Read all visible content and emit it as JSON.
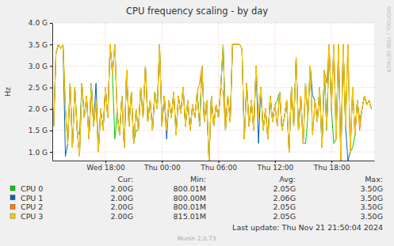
{
  "chart_data": {
    "type": "line",
    "title": "CPU frequency scaling - by day",
    "ylabel": "Hz",
    "grid": true,
    "xlim": [
      12.36,
      46.54
    ],
    "xticks": [
      {
        "value": 18,
        "label": "Wed 18:00"
      },
      {
        "value": 24,
        "label": "Thu 00:00"
      },
      {
        "value": 30,
        "label": "Thu 06:00"
      },
      {
        "value": 36,
        "label": "Thu 12:00"
      },
      {
        "value": 42,
        "label": "Thu 18:00"
      }
    ],
    "ylim": [
      800000000.0,
      4000000000.0
    ],
    "yticks": [
      {
        "value": 1000000000.0,
        "label": "1.0 G"
      },
      {
        "value": 1500000000.0,
        "label": "1.5 G"
      },
      {
        "value": 2000000000.0,
        "label": "2.0 G"
      },
      {
        "value": 2500000000.0,
        "label": "2.5 G"
      },
      {
        "value": 3000000000.0,
        "label": "3.0 G"
      },
      {
        "value": 3500000000.0,
        "label": "3.5 G"
      },
      {
        "value": 4000000000.0,
        "label": "4.0 G"
      }
    ],
    "x": [
      12.5,
      12.75,
      13,
      13.25,
      13.5,
      13.75,
      14,
      14.25,
      14.5,
      14.75,
      15,
      15.25,
      15.5,
      15.75,
      16,
      16.25,
      16.5,
      16.75,
      17,
      17.25,
      17.5,
      17.75,
      18,
      18.25,
      18.5,
      18.75,
      19,
      19.25,
      19.5,
      19.75,
      20,
      20.25,
      20.5,
      20.75,
      21,
      21.25,
      21.5,
      21.75,
      22,
      22.25,
      22.5,
      22.75,
      23,
      23.25,
      23.5,
      23.75,
      24,
      24.25,
      24.5,
      24.75,
      25,
      25.25,
      25.5,
      25.75,
      26,
      26.25,
      26.5,
      26.75,
      27,
      27.25,
      27.5,
      27.75,
      28,
      28.25,
      28.5,
      28.75,
      29,
      29.25,
      29.5,
      29.75,
      30,
      30.25,
      30.5,
      30.75,
      31,
      31.25,
      31.5,
      31.75,
      32,
      32.25,
      32.5,
      32.75,
      33,
      33.25,
      33.5,
      33.75,
      34,
      34.25,
      34.5,
      34.75,
      35,
      35.25,
      35.5,
      35.75,
      36,
      36.25,
      36.5,
      36.75,
      37,
      37.25,
      37.5,
      37.75,
      38,
      38.25,
      38.5,
      38.75,
      39,
      39.25,
      39.5,
      39.75,
      40,
      40.25,
      40.5,
      40.75,
      41,
      41.25,
      41.5,
      41.75,
      42,
      42.25,
      42.5,
      42.75,
      43,
      43.25,
      43.5,
      43.75,
      44,
      44.25,
      44.5,
      44.75,
      45,
      45.25,
      45.5,
      45.75,
      46,
      46.25
    ],
    "series": [
      {
        "name": "CPU 0",
        "color": "#00cc00",
        "values": [
          1600000000.0,
          3300000000.0,
          3500000000.0,
          3400000000.0,
          3500000000.0,
          2000000000.0,
          1200000000.0,
          2600000000.0,
          1100000000.0,
          2500000000.0,
          1500000000.0,
          1400000000.0,
          2600000000.0,
          1800000000.0,
          2300000000.0,
          1300000000.0,
          2600000000.0,
          1600000000.0,
          2200000000.0,
          1000000000.0,
          2000000000.0,
          1500000000.0,
          2500000000.0,
          1800000000.0,
          3500000000.0,
          2800000000.0,
          1300000000.0,
          1900000000.0,
          1400000000.0,
          2300000000.0,
          1100000000.0,
          2900000000.0,
          1600000000.0,
          2400000000.0,
          1200000000.0,
          1500000000.0,
          1500000000.0,
          2500000000.0,
          1800000000.0,
          3000000000.0,
          1700000000.0,
          2200000000.0,
          1500000000.0,
          2400000000.0,
          2000000000.0,
          3500000000.0,
          1600000000.0,
          2300000000.0,
          1500000000.0,
          2200000000.0,
          1800000000.0,
          2400000000.0,
          1400000000.0,
          2300000000.0,
          1900000000.0,
          2500000000.0,
          1600000000.0,
          2200000000.0,
          1500000000.0,
          2100000000.0,
          1800000000.0,
          2400000000.0,
          1600000000.0,
          3000000000.0,
          1700000000.0,
          2200000000.0,
          800000000.0,
          2300000000.0,
          1600000000.0,
          2100000000.0,
          1800000000.0,
          2500000000.0,
          3500000000.0,
          1500000000.0,
          2300000000.0,
          1700000000.0,
          3500000000.0,
          3500000000.0,
          3500000000.0,
          3500000000.0,
          3400000000.0,
          1300000000.0,
          2600000000.0,
          1600000000.0,
          2200000000.0,
          1500000000.0,
          3000000000.0,
          1800000000.0,
          2500000000.0,
          1500000000.0,
          2000000000.0,
          1300000000.0,
          2300000000.0,
          1700000000.0,
          2100000000.0,
          2200000000.0,
          2400000000.0,
          1500000000.0,
          1800000000.0,
          2200000000.0,
          1000000000.0,
          2500000000.0,
          1600000000.0,
          3200000000.0,
          1500000000.0,
          2300000000.0,
          1200000000.0,
          1200000000.0,
          1800000000.0,
          3000000000.0,
          1400000000.0,
          2200000000.0,
          1700000000.0,
          2500000000.0,
          1100000000.0,
          2900000000.0,
          1500000000.0,
          3500000000.0,
          2000000000.0,
          1200000000.0,
          1300000000.0,
          3500000000.0,
          800000000.0,
          3500000000.0,
          1600000000.0,
          3500000000.0,
          1000000000.0,
          1100000000.0,
          1400000000.0,
          2200000000.0,
          1700000000.0,
          2000000000.0,
          2300000000.0,
          2100000000.0,
          2200000000.0,
          2000000000.0
        ]
      },
      {
        "name": "CPU 1",
        "color": "#0066b3",
        "values": [
          1600000000.0,
          3300000000.0,
          3500000000.0,
          3400000000.0,
          3500000000.0,
          900000000.0,
          1200000000.0,
          2600000000.0,
          1100000000.0,
          2500000000.0,
          1500000000.0,
          900000000.0,
          2600000000.0,
          1800000000.0,
          2300000000.0,
          1300000000.0,
          2600000000.0,
          1600000000.0,
          2600000000.0,
          1000000000.0,
          2000000000.0,
          1500000000.0,
          2500000000.0,
          1800000000.0,
          3500000000.0,
          2800000000.0,
          3500000000.0,
          1900000000.0,
          1400000000.0,
          2300000000.0,
          1100000000.0,
          2900000000.0,
          1600000000.0,
          2400000000.0,
          1200000000.0,
          2000000000.0,
          1500000000.0,
          2500000000.0,
          1800000000.0,
          3000000000.0,
          1700000000.0,
          2200000000.0,
          1500000000.0,
          2400000000.0,
          2000000000.0,
          3500000000.0,
          1600000000.0,
          2300000000.0,
          1300000000.0,
          2200000000.0,
          1800000000.0,
          2400000000.0,
          1400000000.0,
          2300000000.0,
          1900000000.0,
          2500000000.0,
          1600000000.0,
          2200000000.0,
          1500000000.0,
          2100000000.0,
          1800000000.0,
          2400000000.0,
          1600000000.0,
          3000000000.0,
          1700000000.0,
          2200000000.0,
          800000000.0,
          2300000000.0,
          1600000000.0,
          2100000000.0,
          1800000000.0,
          2500000000.0,
          3500000000.0,
          1500000000.0,
          2300000000.0,
          1700000000.0,
          3500000000.0,
          3500000000.0,
          3500000000.0,
          3500000000.0,
          3400000000.0,
          1300000000.0,
          2600000000.0,
          1600000000.0,
          2200000000.0,
          1500000000.0,
          3000000000.0,
          1200000000.0,
          2500000000.0,
          1500000000.0,
          2000000000.0,
          1300000000.0,
          2300000000.0,
          1700000000.0,
          2100000000.0,
          1600000000.0,
          2400000000.0,
          1500000000.0,
          1800000000.0,
          2200000000.0,
          1000000000.0,
          2500000000.0,
          1600000000.0,
          3200000000.0,
          1500000000.0,
          2300000000.0,
          1200000000.0,
          2600000000.0,
          1800000000.0,
          3000000000.0,
          2300000000.0,
          2200000000.0,
          1700000000.0,
          2500000000.0,
          1100000000.0,
          2900000000.0,
          1500000000.0,
          3500000000.0,
          2000000000.0,
          3500000000.0,
          1300000000.0,
          3500000000.0,
          800000000.0,
          3500000000.0,
          1600000000.0,
          800000000.0,
          1000000000.0,
          2500000000.0,
          1400000000.0,
          2200000000.0,
          1700000000.0,
          2000000000.0,
          2300000000.0,
          2100000000.0,
          2200000000.0,
          2000000000.0
        ]
      },
      {
        "name": "CPU 2",
        "color": "#ff8000",
        "values": [
          1600000000.0,
          3300000000.0,
          3500000000.0,
          3400000000.0,
          3500000000.0,
          2000000000.0,
          1200000000.0,
          2600000000.0,
          1100000000.0,
          2500000000.0,
          1500000000.0,
          900000000.0,
          2600000000.0,
          1800000000.0,
          2300000000.0,
          1300000000.0,
          2400000000.0,
          1600000000.0,
          2200000000.0,
          1000000000.0,
          2000000000.0,
          1500000000.0,
          2500000000.0,
          1800000000.0,
          3500000000.0,
          2800000000.0,
          3500000000.0,
          1900000000.0,
          1400000000.0,
          2300000000.0,
          1100000000.0,
          2900000000.0,
          1600000000.0,
          2400000000.0,
          1200000000.0,
          2000000000.0,
          1500000000.0,
          2500000000.0,
          1800000000.0,
          3000000000.0,
          1700000000.0,
          2200000000.0,
          1500000000.0,
          2400000000.0,
          2000000000.0,
          3500000000.0,
          1600000000.0,
          2300000000.0,
          1500000000.0,
          2200000000.0,
          1800000000.0,
          2400000000.0,
          1400000000.0,
          2300000000.0,
          1900000000.0,
          2500000000.0,
          1600000000.0,
          2200000000.0,
          1500000000.0,
          2100000000.0,
          1800000000.0,
          2400000000.0,
          2600000000.0,
          3000000000.0,
          1700000000.0,
          2200000000.0,
          800000000.0,
          2300000000.0,
          1600000000.0,
          2100000000.0,
          1800000000.0,
          2500000000.0,
          2400000000.0,
          1500000000.0,
          2300000000.0,
          1700000000.0,
          3500000000.0,
          3500000000.0,
          3500000000.0,
          3500000000.0,
          3400000000.0,
          1300000000.0,
          2600000000.0,
          1600000000.0,
          2200000000.0,
          1500000000.0,
          3000000000.0,
          1800000000.0,
          2500000000.0,
          1500000000.0,
          2000000000.0,
          1300000000.0,
          2300000000.0,
          1700000000.0,
          2100000000.0,
          1600000000.0,
          2400000000.0,
          1500000000.0,
          1800000000.0,
          2200000000.0,
          1000000000.0,
          2500000000.0,
          1600000000.0,
          3200000000.0,
          1500000000.0,
          2300000000.0,
          1200000000.0,
          2600000000.0,
          1800000000.0,
          3000000000.0,
          1400000000.0,
          2200000000.0,
          1700000000.0,
          2500000000.0,
          1100000000.0,
          2900000000.0,
          2600000000.0,
          3500000000.0,
          2000000000.0,
          3500000000.0,
          1300000000.0,
          3500000000.0,
          800000000.0,
          3500000000.0,
          1600000000.0,
          3500000000.0,
          1000000000.0,
          2500000000.0,
          1400000000.0,
          2200000000.0,
          1500000000.0,
          2000000000.0,
          2300000000.0,
          2100000000.0,
          2200000000.0,
          2000000000.0
        ]
      },
      {
        "name": "CPU 3",
        "color": "#ffcc00",
        "values": [
          1600000000.0,
          3300000000.0,
          3500000000.0,
          3400000000.0,
          3500000000.0,
          2000000000.0,
          1200000000.0,
          2600000000.0,
          1100000000.0,
          2500000000.0,
          1500000000.0,
          900000000.0,
          2600000000.0,
          1800000000.0,
          2300000000.0,
          1300000000.0,
          2600000000.0,
          1600000000.0,
          2200000000.0,
          1000000000.0,
          2000000000.0,
          1500000000.0,
          2500000000.0,
          1800000000.0,
          3500000000.0,
          2800000000.0,
          3500000000.0,
          1900000000.0,
          1400000000.0,
          2300000000.0,
          1100000000.0,
          2900000000.0,
          1600000000.0,
          2400000000.0,
          1200000000.0,
          2000000000.0,
          1500000000.0,
          2500000000.0,
          1800000000.0,
          3000000000.0,
          1700000000.0,
          2200000000.0,
          1500000000.0,
          2400000000.0,
          2000000000.0,
          3500000000.0,
          1600000000.0,
          2300000000.0,
          1500000000.0,
          2200000000.0,
          1800000000.0,
          2400000000.0,
          1400000000.0,
          2300000000.0,
          1900000000.0,
          2500000000.0,
          1600000000.0,
          2200000000.0,
          1500000000.0,
          2100000000.0,
          1800000000.0,
          2400000000.0,
          1600000000.0,
          3000000000.0,
          1700000000.0,
          2200000000.0,
          820000000.0,
          2300000000.0,
          1600000000.0,
          2100000000.0,
          1800000000.0,
          2500000000.0,
          3500000000.0,
          1500000000.0,
          2300000000.0,
          1700000000.0,
          3500000000.0,
          3500000000.0,
          3500000000.0,
          3500000000.0,
          3400000000.0,
          1300000000.0,
          2600000000.0,
          1600000000.0,
          2200000000.0,
          1500000000.0,
          3000000000.0,
          1800000000.0,
          2500000000.0,
          1500000000.0,
          2000000000.0,
          1300000000.0,
          2300000000.0,
          1700000000.0,
          2100000000.0,
          1600000000.0,
          2400000000.0,
          1500000000.0,
          1800000000.0,
          2200000000.0,
          1000000000.0,
          2500000000.0,
          1600000000.0,
          3200000000.0,
          1500000000.0,
          2300000000.0,
          1200000000.0,
          2600000000.0,
          1800000000.0,
          3000000000.0,
          1400000000.0,
          2200000000.0,
          1700000000.0,
          2500000000.0,
          1100000000.0,
          2900000000.0,
          1500000000.0,
          3500000000.0,
          2000000000.0,
          3500000000.0,
          1300000000.0,
          3500000000.0,
          820000000.0,
          3500000000.0,
          1600000000.0,
          3500000000.0,
          1000000000.0,
          2500000000.0,
          1400000000.0,
          2200000000.0,
          1700000000.0,
          2000000000.0,
          2300000000.0,
          2100000000.0,
          2200000000.0,
          2000000000.0
        ]
      }
    ],
    "legend_table": {
      "header": [
        "Cur:",
        "Min:",
        "Avg:",
        "Max:"
      ],
      "rows": [
        [
          "2.00G",
          "800.01M",
          "2.05G",
          "3.50G"
        ],
        [
          "2.00G",
          "800.00M",
          "2.06G",
          "3.50G"
        ],
        [
          "2.00G",
          "800.01M",
          "2.05G",
          "3.50G"
        ],
        [
          "2.00G",
          "815.01M",
          "2.05G",
          "3.50G"
        ]
      ]
    },
    "footer": "Last update: Thu Nov 21 21:50:04 2024",
    "credit": "Munin 2.0.73",
    "watermark": "RRDTOOL / TOBI OETIKER"
  }
}
